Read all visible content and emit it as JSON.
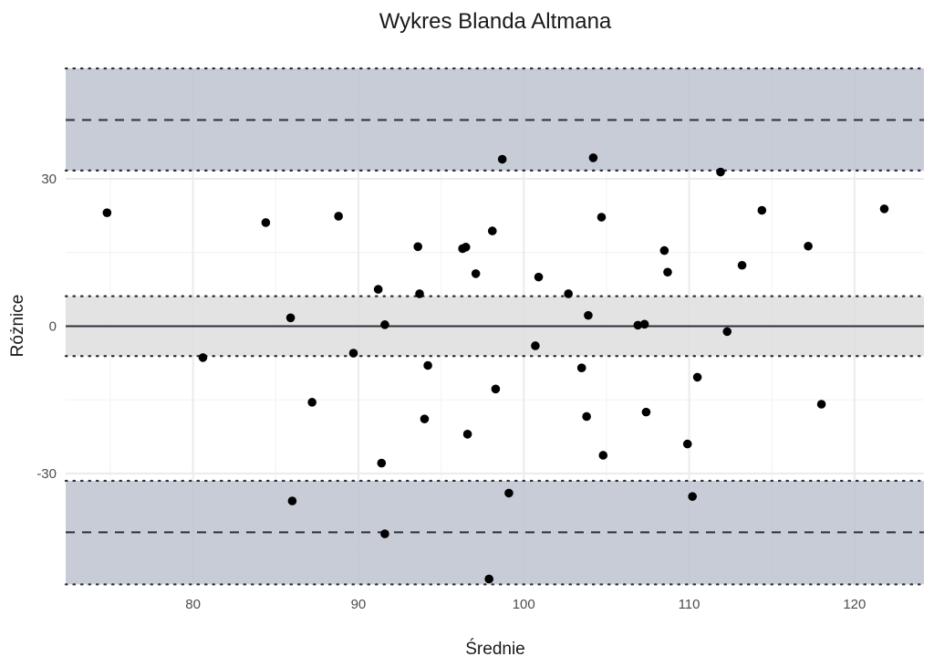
{
  "chart_data": {
    "type": "scatter",
    "title": "Wykres Blanda Altmana",
    "xlabel": "Średnie",
    "ylabel": "Różnice",
    "xlim": [
      72.3,
      124.2
    ],
    "ylim": [
      -52.7,
      52.5
    ],
    "x_ticks": [
      80,
      90,
      100,
      110,
      120
    ],
    "x_tick_labels": [
      "80",
      "90",
      "100",
      "110",
      "120"
    ],
    "y_ticks": [
      -30,
      0,
      30
    ],
    "y_tick_labels": [
      "-30",
      "0",
      "30"
    ],
    "grid": true,
    "legend": "none",
    "reference_lines": {
      "mean_difference": 0,
      "upper_loa": 42.0,
      "lower_loa": -42.0
    },
    "bands": [
      {
        "name": "upper_loa_ci",
        "ymin": 31.7,
        "ymax": 52.5,
        "color": "#bdc3cf"
      },
      {
        "name": "mean_ci",
        "ymin": -6.1,
        "ymax": 6.1,
        "color": "#dedede"
      },
      {
        "name": "lower_loa_ci",
        "ymin": -52.6,
        "ymax": -31.5,
        "color": "#bdc3cf"
      }
    ],
    "points": [
      {
        "x": 74.8,
        "y": 23.1
      },
      {
        "x": 80.6,
        "y": -6.4
      },
      {
        "x": 84.4,
        "y": 21.1
      },
      {
        "x": 85.9,
        "y": 1.7
      },
      {
        "x": 86.0,
        "y": -35.6
      },
      {
        "x": 87.2,
        "y": -15.5
      },
      {
        "x": 88.8,
        "y": 22.4
      },
      {
        "x": 89.7,
        "y": -5.5
      },
      {
        "x": 91.2,
        "y": 7.5
      },
      {
        "x": 91.4,
        "y": -27.9
      },
      {
        "x": 91.6,
        "y": 0.3
      },
      {
        "x": 91.6,
        "y": -42.3
      },
      {
        "x": 93.6,
        "y": 16.2
      },
      {
        "x": 93.7,
        "y": 6.6
      },
      {
        "x": 94.0,
        "y": -18.9
      },
      {
        "x": 94.2,
        "y": -8.0
      },
      {
        "x": 96.3,
        "y": 15.8
      },
      {
        "x": 96.5,
        "y": 16.1
      },
      {
        "x": 96.6,
        "y": -22.0
      },
      {
        "x": 97.1,
        "y": 10.7
      },
      {
        "x": 97.9,
        "y": -51.5
      },
      {
        "x": 98.1,
        "y": 19.4
      },
      {
        "x": 98.3,
        "y": -12.8
      },
      {
        "x": 98.7,
        "y": 34.0
      },
      {
        "x": 99.1,
        "y": -34.0
      },
      {
        "x": 100.7,
        "y": -4.0
      },
      {
        "x": 100.9,
        "y": 10.0
      },
      {
        "x": 102.7,
        "y": 6.6
      },
      {
        "x": 103.5,
        "y": -8.5
      },
      {
        "x": 103.8,
        "y": -18.4
      },
      {
        "x": 103.9,
        "y": 2.2
      },
      {
        "x": 104.2,
        "y": 34.3
      },
      {
        "x": 104.7,
        "y": 22.2
      },
      {
        "x": 104.8,
        "y": -26.3
      },
      {
        "x": 106.9,
        "y": 0.2
      },
      {
        "x": 107.3,
        "y": 0.4
      },
      {
        "x": 107.4,
        "y": -17.5
      },
      {
        "x": 108.5,
        "y": 15.4
      },
      {
        "x": 108.7,
        "y": 11.0
      },
      {
        "x": 109.9,
        "y": -24.0
      },
      {
        "x": 110.2,
        "y": -34.7
      },
      {
        "x": 110.5,
        "y": -10.4
      },
      {
        "x": 111.9,
        "y": 31.4
      },
      {
        "x": 112.3,
        "y": -1.1
      },
      {
        "x": 113.2,
        "y": 12.4
      },
      {
        "x": 114.4,
        "y": 23.6
      },
      {
        "x": 117.2,
        "y": 16.3
      },
      {
        "x": 118.0,
        "y": -15.9
      },
      {
        "x": 121.8,
        "y": 23.9
      }
    ]
  },
  "colors": {
    "background": "#ffffff",
    "grid_major": "#ebebeb",
    "grid_minor": "#f4f4f4",
    "band_loa": "#bdc3cf",
    "band_mean": "#dedede",
    "line": "#2b2f38",
    "point": "#000000"
  }
}
